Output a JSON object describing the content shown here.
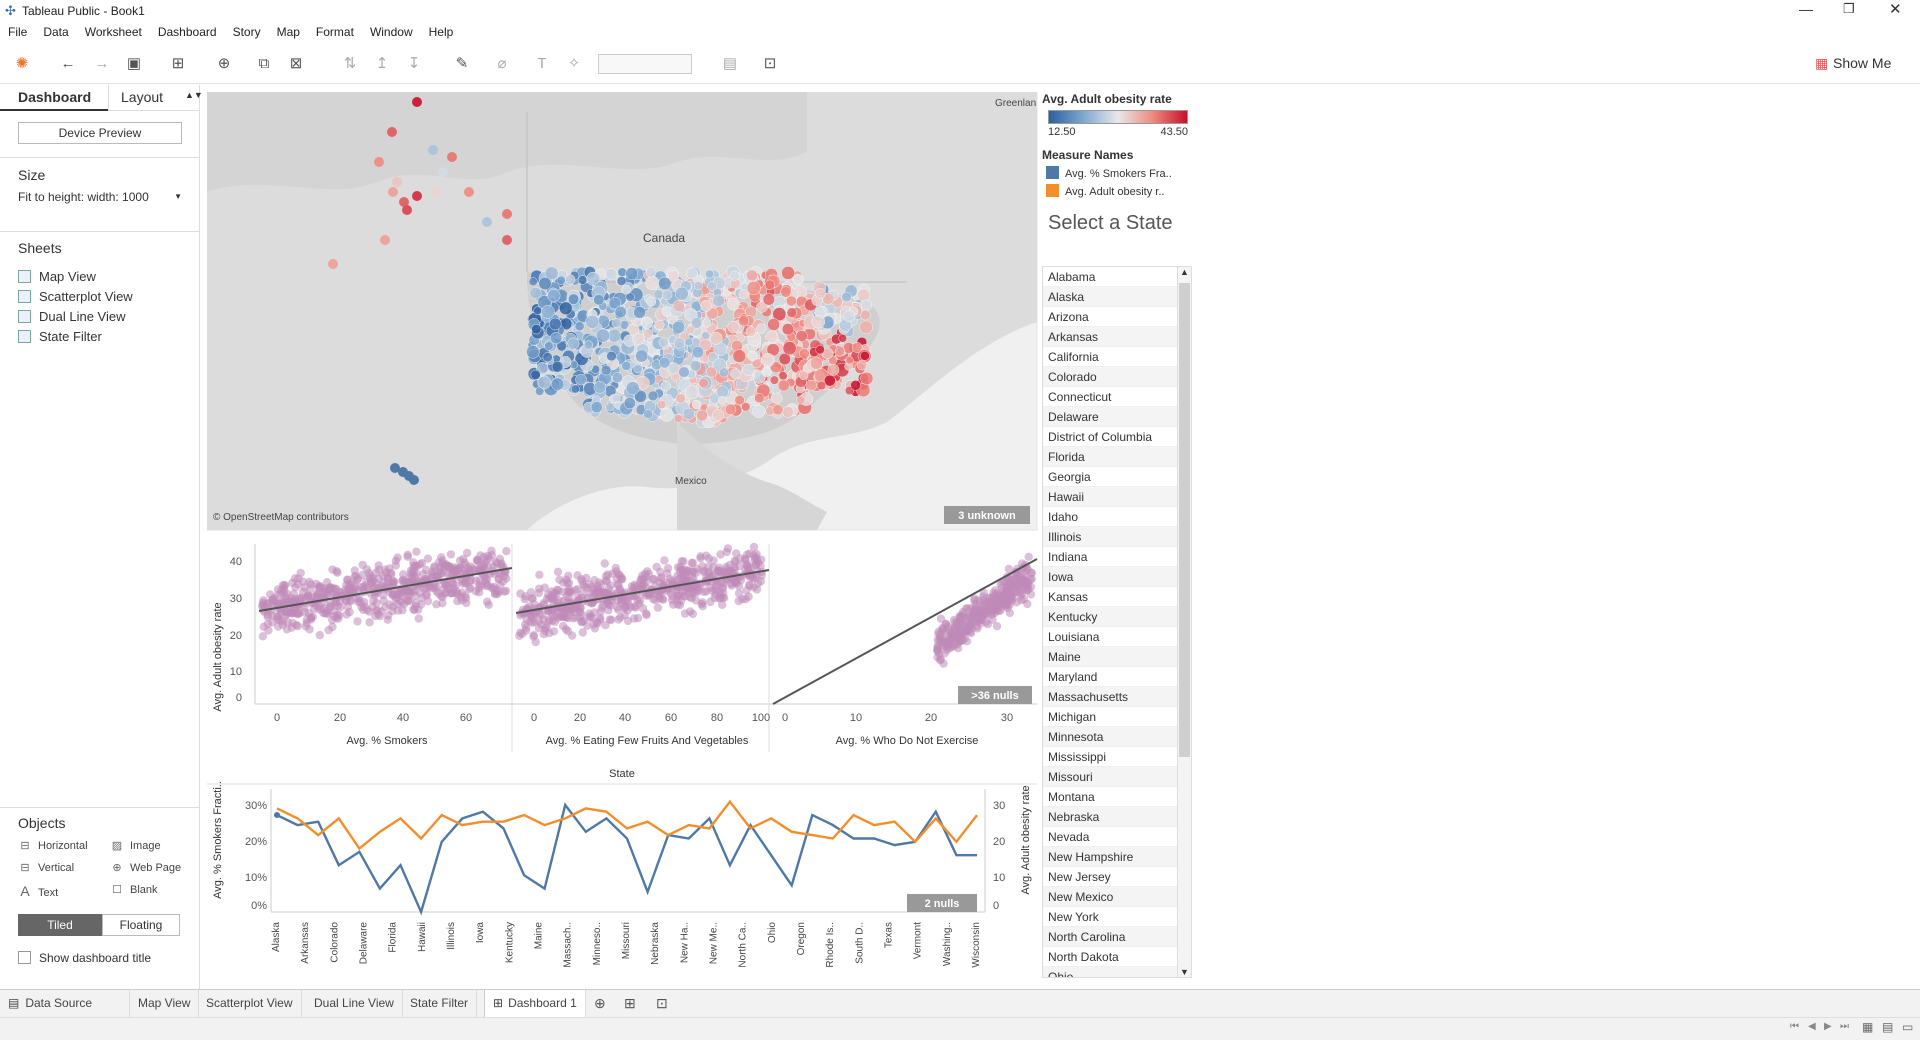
{
  "window": {
    "title": "Tableau Public - Book1"
  },
  "menu": [
    "File",
    "Data",
    "Worksheet",
    "Dashboard",
    "Story",
    "Map",
    "Format",
    "Window",
    "Help"
  ],
  "toolbar": {
    "show_me": "Show Me"
  },
  "left": {
    "tab_dashboard": "Dashboard",
    "tab_layout": "Layout",
    "device_preview": "Device Preview",
    "size_title": "Size",
    "size_value": "Fit to height: width: 1000",
    "sheets_title": "Sheets",
    "sheets": [
      "Map View",
      "Scatterplot View",
      "Dual Line View",
      "State Filter"
    ],
    "objects_title": "Objects",
    "objects": [
      {
        "icon": "horizontal-icon",
        "label": "Horizontal"
      },
      {
        "icon": "image-icon",
        "label": "Image"
      },
      {
        "icon": "vertical-icon",
        "label": "Vertical"
      },
      {
        "icon": "web-page-icon",
        "label": "Web Page"
      },
      {
        "icon": "text-icon",
        "label": "Text"
      },
      {
        "icon": "blank-icon",
        "label": "Blank"
      }
    ],
    "tiled": "Tiled",
    "floating": "Floating",
    "show_title": "Show dashboard title"
  },
  "map": {
    "labels": {
      "canada": "Canada",
      "mexico": "Mexico",
      "greenland": "Greenlan"
    },
    "attribution": "© OpenStreetMap contributors",
    "unknown_badge": "3 unknown"
  },
  "scatter": {
    "y_label": "Avg. Adult obesity rate",
    "y_ticks": [
      "40",
      "30",
      "20",
      "10",
      "0"
    ],
    "panels": [
      {
        "x_label": "Avg. % Smokers",
        "x_ticks": [
          "0",
          "20",
          "40",
          "60"
        ]
      },
      {
        "x_label": "Avg. % Eating Few Fruits And Vegetables",
        "x_ticks": [
          "0",
          "20",
          "40",
          "60",
          "80",
          "100"
        ]
      },
      {
        "x_label": "Avg. % Who Do Not Exercise",
        "x_ticks": [
          "0",
          "10",
          "20",
          "30"
        ]
      }
    ],
    "nulls_badge": ">36 nulls"
  },
  "dual_line": {
    "header": "State",
    "left_label": "Avg. % Smokers Fracti..",
    "right_label": "Avg. Adult obesity rate",
    "left_ticks": [
      "30%",
      "20%",
      "10%",
      "0%"
    ],
    "right_ticks": [
      "30",
      "20",
      "10",
      "0"
    ],
    "nulls_badge": "2 nulls",
    "x_labels": [
      "Alaska",
      "Arkansas",
      "Colorado",
      "Delaware",
      "Florida",
      "Hawaii",
      "Illinois",
      "Iowa",
      "Kentucky",
      "Maine",
      "Massach..",
      "Minneso..",
      "Missouri",
      "Nebraska",
      "New Ha..",
      "New Me..",
      "North Ca..",
      "Ohio",
      "Oregon",
      "Rhode Is..",
      "South D..",
      "Texas",
      "Vermont",
      "Washing..",
      "Wisconsin"
    ]
  },
  "chart_data": [
    {
      "type": "line",
      "title": "",
      "xlabel": "State",
      "ylabel": "Avg. % Smokers Fracti..",
      "y2label": "Avg. Adult obesity rate",
      "series": [
        {
          "name": "Avg. % Smokers Fra..",
          "color": "#4e79a7",
          "values": [
            29,
            26,
            27,
            14,
            18,
            7,
            14,
            0,
            21,
            28,
            30,
            25,
            11,
            7,
            32,
            24,
            28,
            22,
            6,
            23,
            22,
            28,
            14,
            26,
            17,
            8,
            29,
            26,
            22,
            22,
            20,
            21,
            30,
            17,
            17
          ]
        },
        {
          "name": "Avg. Adult obesity r..",
          "color": "#f28e2b",
          "values": [
            31,
            28,
            23,
            28,
            19,
            24,
            28,
            22,
            29,
            26,
            27,
            27,
            29,
            26,
            28,
            31,
            30,
            25,
            27,
            23,
            26,
            25,
            33,
            25,
            28,
            24,
            23,
            22,
            29,
            26,
            27,
            21,
            28,
            21,
            29
          ]
        }
      ]
    }
  ],
  "legend": {
    "color_title": "Avg. Adult obesity rate",
    "color_min": "12.50",
    "color_max": "43.50",
    "measure_title": "Measure Names",
    "measures": [
      {
        "name": "Avg. % Smokers Fra..",
        "color": "#4e79a7"
      },
      {
        "name": "Avg. Adult obesity r..",
        "color": "#f28e2b"
      }
    ],
    "select_state": "Select a State"
  },
  "states": [
    "Alabama",
    "Alaska",
    "Arizona",
    "Arkansas",
    "California",
    "Colorado",
    "Connecticut",
    "Delaware",
    "District of Columbia",
    "Florida",
    "Georgia",
    "Hawaii",
    "Idaho",
    "Illinois",
    "Indiana",
    "Iowa",
    "Kansas",
    "Kentucky",
    "Louisiana",
    "Maine",
    "Maryland",
    "Massachusetts",
    "Michigan",
    "Minnesota",
    "Mississippi",
    "Missouri",
    "Montana",
    "Nebraska",
    "Nevada",
    "New Hampshire",
    "New Jersey",
    "New Mexico",
    "New York",
    "North Carolina",
    "North Dakota",
    "Ohio"
  ],
  "tabs": [
    "Data Source",
    "Map View",
    "Scatterplot View",
    "Dual Line View",
    "State Filter",
    "Dashboard 1"
  ]
}
